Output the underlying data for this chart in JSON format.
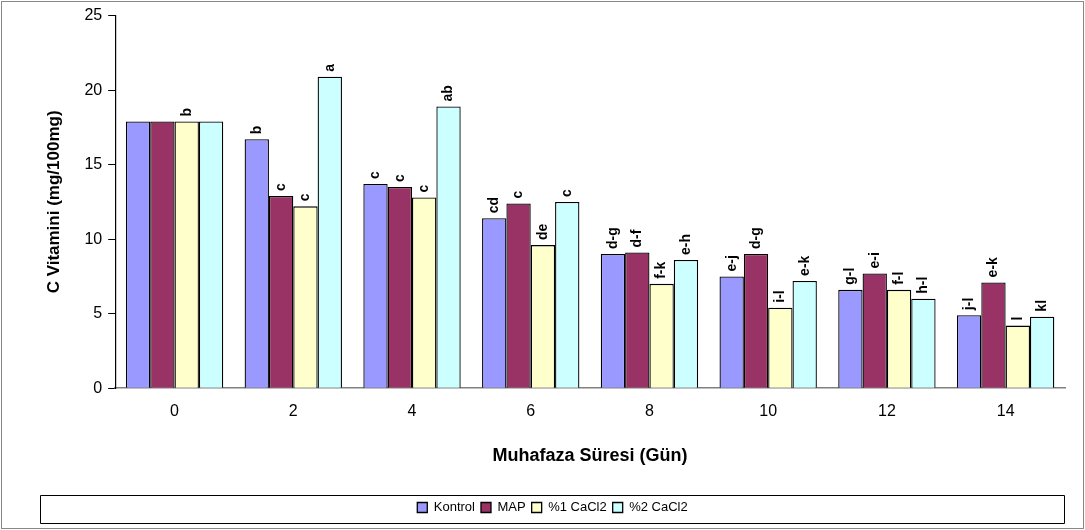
{
  "chart_data": {
    "type": "bar",
    "xlabel": "Muhafaza Süresi (Gün)",
    "ylabel": "C Vitamini (mg/100mg)",
    "categories": [
      "0",
      "2",
      "4",
      "6",
      "8",
      "10",
      "12",
      "14"
    ],
    "ylim": [
      0,
      25
    ],
    "yticks": [
      0,
      5,
      10,
      15,
      20,
      25
    ],
    "grid": false,
    "legend": "bottom",
    "series": [
      {
        "name": "Kontrol",
        "color": "#9999ff",
        "values": [
          17.9,
          16.7,
          13.7,
          11.4,
          9.0,
          7.5,
          6.6,
          4.9
        ],
        "value_labels": [
          null,
          "b",
          "c",
          "cd",
          "d-g",
          "e-j",
          "g-l",
          "j-l"
        ]
      },
      {
        "name": "MAP",
        "color": "#993366",
        "values": [
          17.9,
          12.9,
          13.5,
          12.4,
          9.1,
          9.0,
          7.7,
          7.1
        ],
        "value_labels": [
          null,
          "c",
          "c",
          "c",
          "d-f",
          "d-g",
          "e-i",
          "e-k"
        ]
      },
      {
        "name": "%1 CaCl2",
        "color": "#ffffcc",
        "values": [
          17.9,
          12.2,
          12.8,
          9.6,
          7.0,
          5.4,
          6.6,
          4.2
        ],
        "value_labels": [
          "b",
          "c",
          "c",
          "de",
          "f-k",
          "i-l",
          "f-l",
          "l"
        ]
      },
      {
        "name": "%2 CaCl2",
        "color": "#ccffff",
        "values": [
          17.9,
          20.9,
          18.9,
          12.5,
          8.6,
          7.2,
          6.0,
          4.8
        ],
        "value_labels": [
          null,
          "a",
          "ab",
          "c",
          "e-h",
          "e-k",
          "h-l",
          "kl"
        ]
      }
    ]
  }
}
